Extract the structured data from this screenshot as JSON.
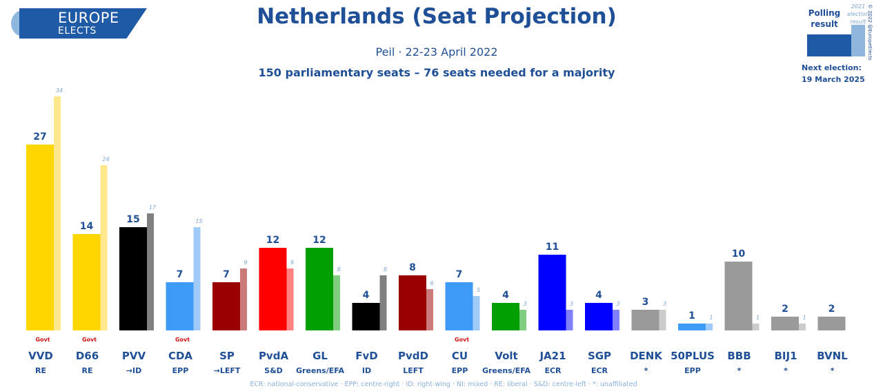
{
  "header": {
    "logo_line1": "EUROPE",
    "logo_line2": "ELECTS",
    "title": "Netherlands (Seat Projection)",
    "subtitle": "Peil · 22-23 April 2022",
    "subtitle2": "150 parliamentary seats – 76 seats needed for a majority"
  },
  "legend": {
    "polling_label": "Polling result",
    "election_label": "2021 election result",
    "next_election_label": "Next election:",
    "next_election_date": "19 March 2025",
    "copyright": "© 2022 @EuropeElects"
  },
  "footnote": "ECR: national-conservative · EPP: centre-right · ID: right-wing · NI: mixed · RE: liberal · S&D: centre-left · *: unaffiliated",
  "colors": {
    "title": "#1f4f96",
    "label": "#1f4f96",
    "govt": "#cc1111"
  },
  "chart_data": {
    "type": "bar",
    "title": "Netherlands (Seat Projection)",
    "categories": [
      "VVD",
      "D66",
      "PVV",
      "CDA",
      "SP",
      "PvdA",
      "GL",
      "FvD",
      "PvdD",
      "CU",
      "Volt",
      "JA21",
      "SGP",
      "DENK",
      "50PLUS",
      "BBB",
      "BIJ1",
      "BVNL"
    ],
    "groups": [
      "RE",
      "RE",
      "→ID",
      "EPP",
      "→LEFT",
      "S&D",
      "Greens/EFA",
      "ID",
      "LEFT",
      "EPP",
      "Greens/EFA",
      "ECR",
      "ECR",
      "*",
      "EPP",
      "*",
      "*",
      "*"
    ],
    "govt": [
      true,
      true,
      false,
      true,
      false,
      false,
      false,
      false,
      false,
      true,
      false,
      false,
      false,
      false,
      false,
      false,
      false,
      false
    ],
    "govt_label": "Govt",
    "series": [
      {
        "name": "Polling result",
        "values": [
          27,
          14,
          15,
          7,
          7,
          12,
          12,
          4,
          8,
          7,
          4,
          11,
          4,
          3,
          1,
          10,
          2,
          2
        ]
      },
      {
        "name": "2021 election result",
        "values": [
          34,
          24,
          17,
          15,
          9,
          9,
          8,
          8,
          6,
          5,
          3,
          3,
          3,
          3,
          1,
          1,
          1,
          null
        ]
      }
    ],
    "poll_colors": [
      "#ffd700",
      "#ffd700",
      "#000000",
      "#3e9bf5",
      "#9a0000",
      "#ff0000",
      "#009e00",
      "#000000",
      "#9a0000",
      "#3e9bf5",
      "#009e00",
      "#0000ff",
      "#0000ff",
      "#9a9a9a",
      "#3e9bf5",
      "#9a9a9a",
      "#9a9a9a",
      "#9a9a9a"
    ],
    "elec_colors": [
      "#ffe98c",
      "#ffe98c",
      "#808080",
      "#9ecbfa",
      "#cc7a7a",
      "#ff8080",
      "#7fce7f",
      "#808080",
      "#cc7a7a",
      "#9ecbfa",
      "#7fce7f",
      "#8080ff",
      "#8080ff",
      "#cccccc",
      "#9ecbfa",
      "#cccccc",
      "#cccccc",
      "#cccccc"
    ],
    "ylim": [
      0,
      35
    ]
  }
}
